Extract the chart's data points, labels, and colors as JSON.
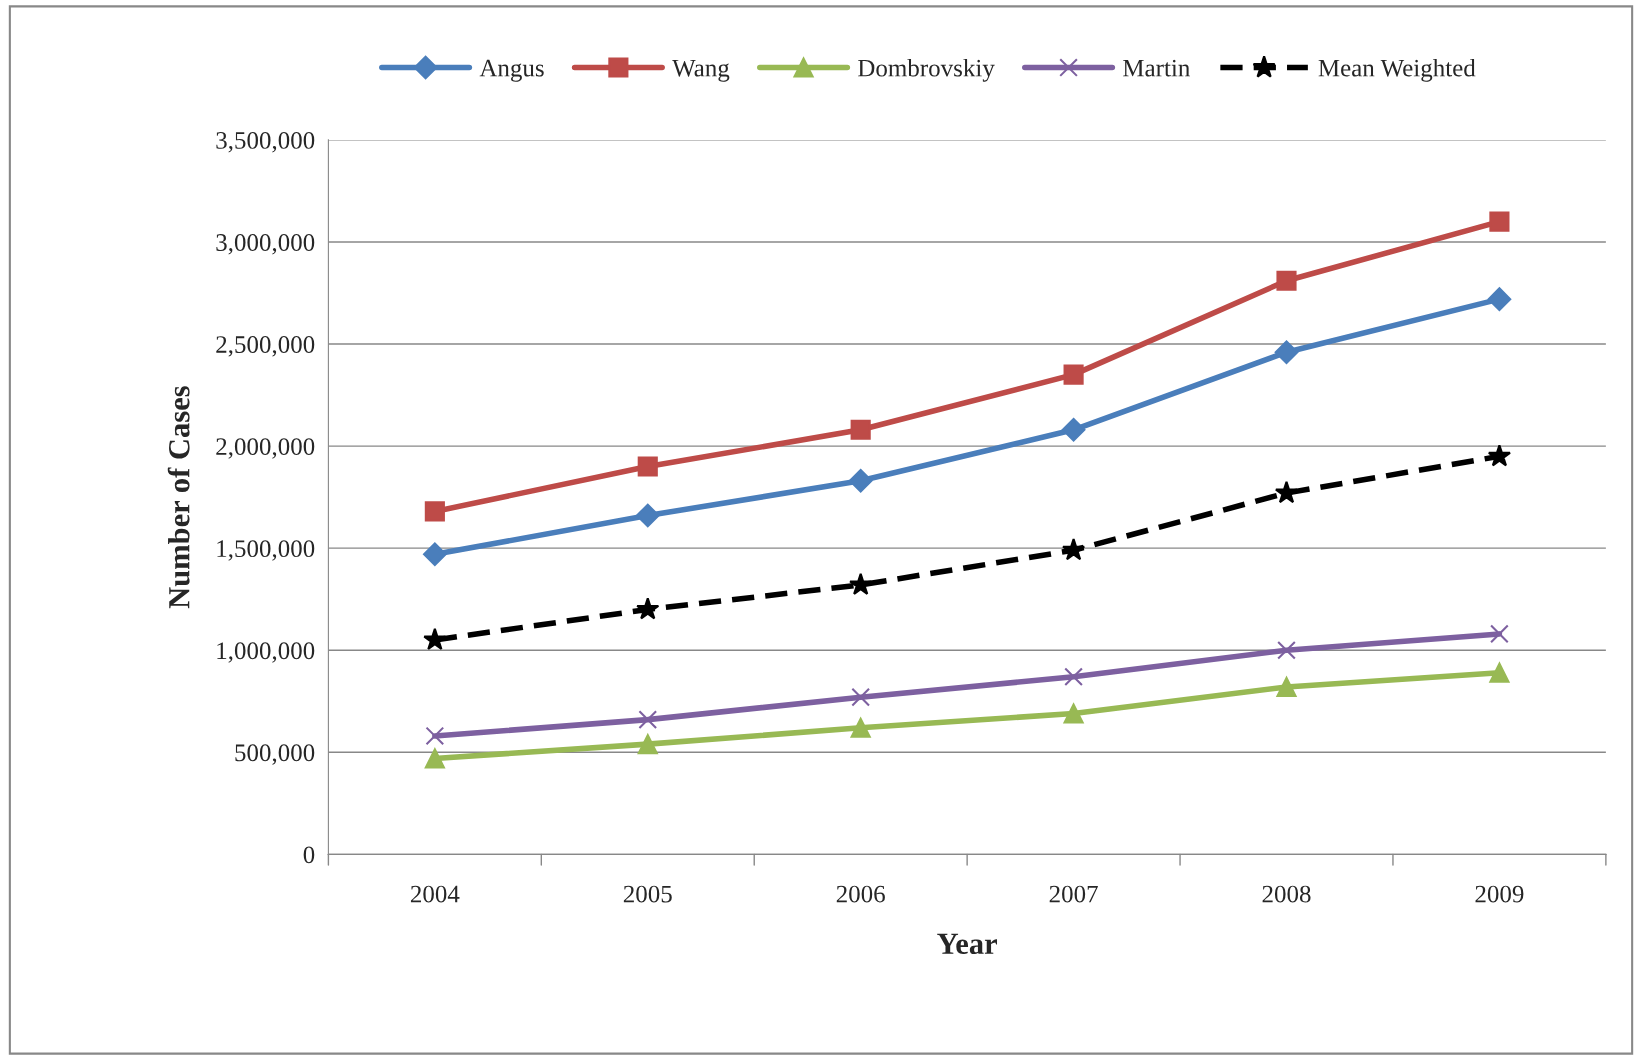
{
  "chart_data": {
    "type": "line",
    "xlabel": "Year",
    "ylabel": "Number of Cases",
    "categories": [
      "2004",
      "2005",
      "2006",
      "2007",
      "2008",
      "2009"
    ],
    "series": [
      {
        "name": "Angus",
        "color": "#4a7ebb",
        "marker": "diamond",
        "line_style": "solid",
        "values": [
          1470000,
          1660000,
          1830000,
          2080000,
          2460000,
          2720000
        ]
      },
      {
        "name": "Wang",
        "color": "#be4b48",
        "marker": "square",
        "line_style": "solid",
        "values": [
          1680000,
          1900000,
          2080000,
          2350000,
          2810000,
          3100000
        ]
      },
      {
        "name": "Dombrovskiy",
        "color": "#98b954",
        "marker": "triangle",
        "line_style": "solid",
        "values": [
          470000,
          540000,
          620000,
          690000,
          820000,
          890000
        ]
      },
      {
        "name": "Martin",
        "color": "#7d60a0",
        "marker": "cross",
        "line_style": "solid",
        "values": [
          580000,
          660000,
          770000,
          870000,
          1000000,
          1080000
        ]
      },
      {
        "name": "Mean Weighted",
        "color": "#000000",
        "marker": "star",
        "line_style": "dashed",
        "values": [
          1050000,
          1200000,
          1320000,
          1490000,
          1770000,
          1950000
        ]
      }
    ],
    "ylim": [
      0,
      3500000
    ],
    "yticks": [
      0,
      {
        "value": 500000,
        "label": "500,000"
      },
      {
        "value": 1000000,
        "label": "1,000,000"
      },
      {
        "value": 1500000,
        "label": "1,500,000"
      },
      {
        "value": 2000000,
        "label": "2,000,000"
      },
      {
        "value": 2500000,
        "label": "2,500,000"
      },
      {
        "value": 3000000,
        "label": "3,000,000"
      },
      {
        "value": 3500000,
        "label": "3,500,000"
      }
    ],
    "grid": "y",
    "legend": "top"
  }
}
